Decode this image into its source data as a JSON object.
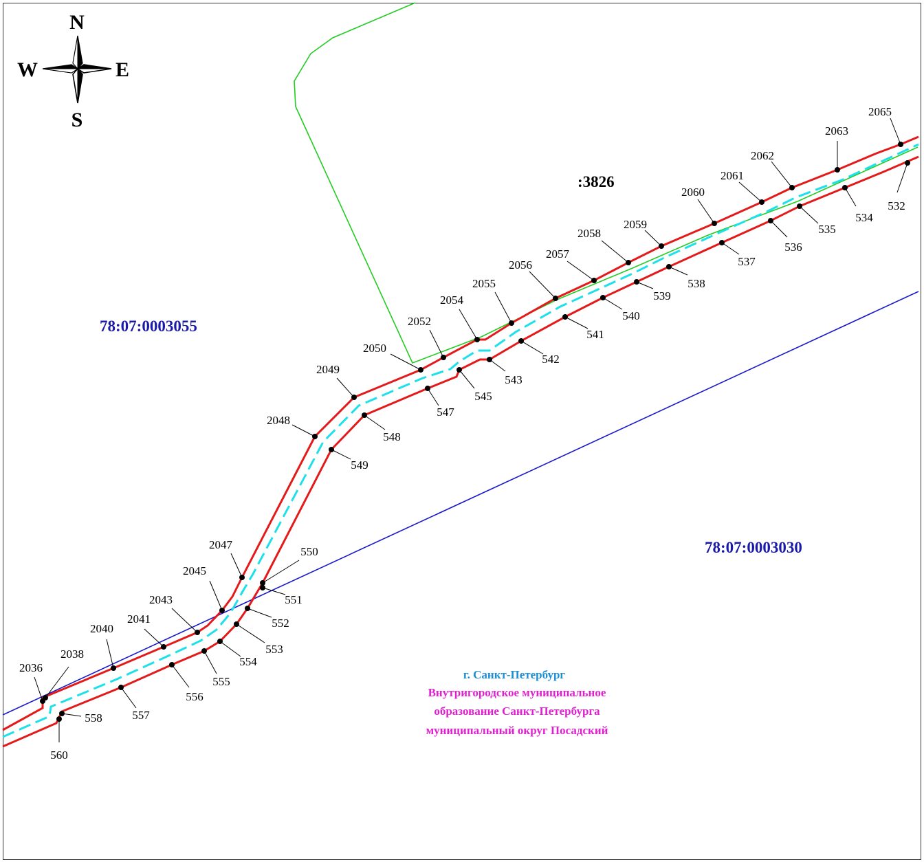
{
  "compass": {
    "n": "N",
    "s": "S",
    "e": "E",
    "w": "W"
  },
  "parcels": {
    "p3826": ":3826",
    "p3055": "78:07:0003055",
    "p3030": "78:07:0003030"
  },
  "municipality": {
    "city": "г. Санкт-Петербург",
    "line1": "Внутригородское муниципальное",
    "line2": "образование Санкт-Петербурга",
    "line3": "муниципальный округ Посадский"
  },
  "colors": {
    "boundary_red": "#e41a1a",
    "axis_cyan": "#1ee0ea",
    "parcel_green": "#22cc22",
    "parcel_blue": "#1a1acc",
    "parcel_label_blue": "#1a1aaa",
    "city_label": "#1a8fd6",
    "muni_label": "#e020d0"
  },
  "points": [
    {
      "name": "2036"
    },
    {
      "name": "2038"
    },
    {
      "name": "2040"
    },
    {
      "name": "2041"
    },
    {
      "name": "2043"
    },
    {
      "name": "2045"
    },
    {
      "name": "2047"
    },
    {
      "name": "2048"
    },
    {
      "name": "2049"
    },
    {
      "name": "2050"
    },
    {
      "name": "2052"
    },
    {
      "name": "2054"
    },
    {
      "name": "2055"
    },
    {
      "name": "2056"
    },
    {
      "name": "2057"
    },
    {
      "name": "2058"
    },
    {
      "name": "2059"
    },
    {
      "name": "2060"
    },
    {
      "name": "2061"
    },
    {
      "name": "2062"
    },
    {
      "name": "2063"
    },
    {
      "name": "2065"
    },
    {
      "name": "532"
    },
    {
      "name": "534"
    },
    {
      "name": "535"
    },
    {
      "name": "536"
    },
    {
      "name": "537"
    },
    {
      "name": "538"
    },
    {
      "name": "539"
    },
    {
      "name": "540"
    },
    {
      "name": "541"
    },
    {
      "name": "542"
    },
    {
      "name": "543"
    },
    {
      "name": "545"
    },
    {
      "name": "547"
    },
    {
      "name": "548"
    },
    {
      "name": "549"
    },
    {
      "name": "550"
    },
    {
      "name": "551"
    },
    {
      "name": "552"
    },
    {
      "name": "553"
    },
    {
      "name": "554"
    },
    {
      "name": "555"
    },
    {
      "name": "556"
    },
    {
      "name": "557"
    },
    {
      "name": "558"
    },
    {
      "name": "560"
    }
  ]
}
